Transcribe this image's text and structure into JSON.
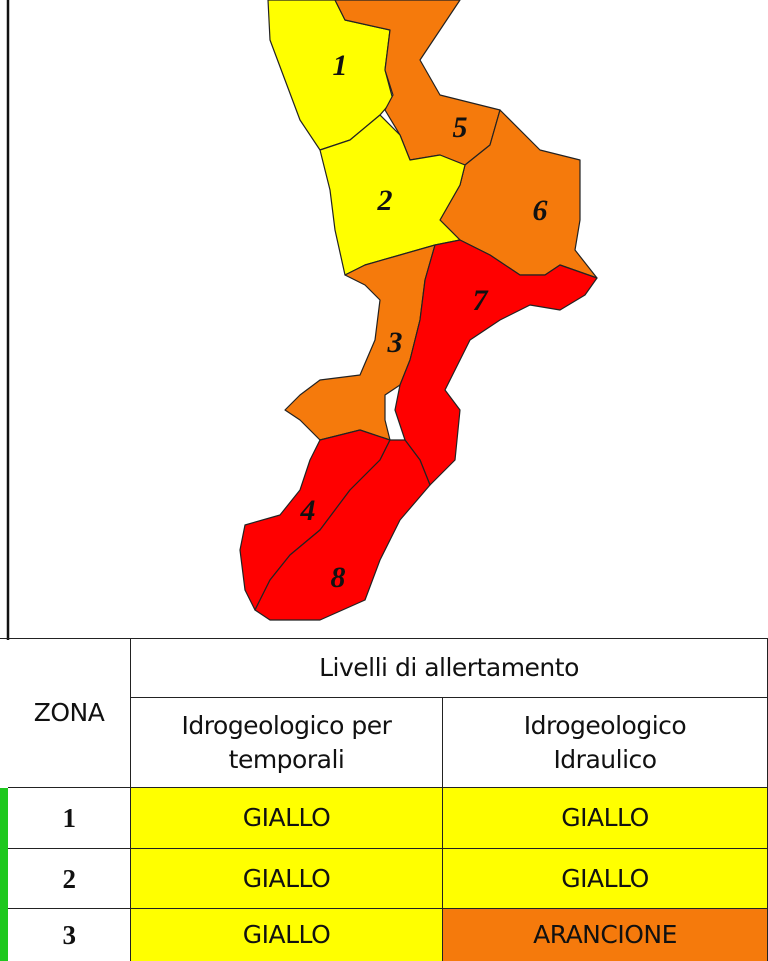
{
  "map": {
    "zones": [
      {
        "label": "1"
      },
      {
        "label": "2"
      },
      {
        "label": "3"
      },
      {
        "label": "4"
      },
      {
        "label": "5"
      },
      {
        "label": "6"
      },
      {
        "label": "7"
      },
      {
        "label": "8"
      }
    ]
  },
  "table": {
    "header": {
      "zona": "ZONA",
      "group": "Livelli di allertamento",
      "columns": [
        "Idrogeologico per temporali",
        "Idrogeologico Idraulico"
      ]
    },
    "rows": [
      [
        "1",
        "GIALLO",
        "GIALLO"
      ],
      [
        "2",
        "GIALLO",
        "GIALLO"
      ],
      [
        "3",
        "GIALLO",
        "ARANCIONE"
      ]
    ]
  }
}
